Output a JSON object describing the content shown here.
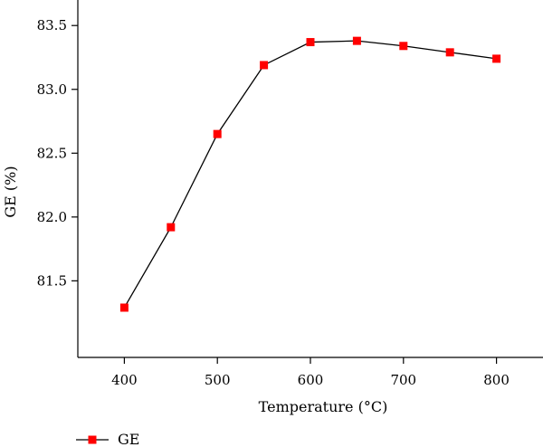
{
  "chart_data": {
    "type": "line",
    "xlabel": "Temperature (°C)",
    "ylabel": "GE (%)",
    "xlim": [
      350,
      850
    ],
    "ylim": [
      80.9,
      83.7
    ],
    "x_ticks": [
      400,
      500,
      600,
      700,
      800
    ],
    "y_ticks": [
      81.5,
      82.0,
      82.5,
      83.0,
      83.5
    ],
    "y_tick_labels": [
      "81.5",
      "82.0",
      "82.5",
      "83.0",
      "83.5"
    ],
    "series": [
      {
        "name": "GE",
        "color": "#ff0000",
        "marker": "square",
        "x": [
          400,
          450,
          500,
          550,
          600,
          650,
          700,
          750,
          800
        ],
        "y": [
          81.29,
          81.92,
          82.65,
          83.19,
          83.37,
          83.38,
          83.34,
          83.29,
          83.24
        ]
      }
    ],
    "legend": {
      "placement": "bottom-left",
      "entries": [
        "GE"
      ]
    },
    "grid": false
  }
}
